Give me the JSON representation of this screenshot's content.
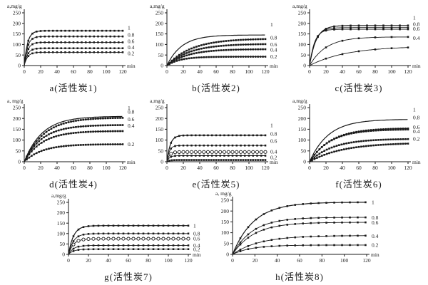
{
  "figure": {
    "description": "Eight adsorption-kinetics line charts for activated carbons 1-8",
    "model_note": "y(t) = plateau × (1 − exp(−t / tau_min)), t in minutes, y in mg/g",
    "ink_color": "#1a1a1a",
    "background_color": "#ffffff"
  },
  "chart_data": [
    {
      "id": "a",
      "type": "line",
      "caption": "a(活性炭1)",
      "ylabel": "a,mg/g",
      "xlabel": "min",
      "y_unit": "mg/g",
      "x_unit": "min",
      "ylim": [
        0,
        250
      ],
      "xlim": [
        0,
        120
      ],
      "yticks": [
        0,
        50,
        100,
        150,
        200,
        250
      ],
      "xticks": [
        0,
        20,
        40,
        60,
        80,
        100,
        120
      ],
      "series": [
        {
          "name": "1",
          "plateau": 165,
          "tau_min": 4,
          "marker": "filled-square",
          "marker_step_min": 5
        },
        {
          "name": "0.8",
          "plateau": 138,
          "tau_min": 4,
          "marker": "filled-square",
          "marker_step_min": 5
        },
        {
          "name": "0.6",
          "plateau": 110,
          "tau_min": 4,
          "marker": "filled-square",
          "marker_step_min": 5
        },
        {
          "name": "0.4",
          "plateau": 82,
          "tau_min": 4,
          "marker": "filled-square",
          "marker_step_min": 5
        },
        {
          "name": "0.2",
          "plateau": 63,
          "tau_min": 4,
          "marker": "filled-square",
          "marker_step_min": 5
        }
      ],
      "legend": [
        {
          "text": "1",
          "at_mg_g": 180
        },
        {
          "text": "0.8",
          "at_mg_g": 145
        },
        {
          "text": "0.6",
          "at_mg_g": 116
        },
        {
          "text": "0.4",
          "at_mg_g": 86
        },
        {
          "text": "0.2",
          "at_mg_g": 57
        }
      ]
    },
    {
      "id": "b",
      "type": "line",
      "caption": "b(活性炭2)",
      "ylabel": "a,mg/g",
      "xlabel": "min",
      "y_unit": "mg/g",
      "x_unit": "min",
      "ylim": [
        0,
        250
      ],
      "xlim": [
        0,
        120
      ],
      "yticks": [
        0,
        50,
        100,
        150,
        200,
        250
      ],
      "xticks": [
        0,
        20,
        40,
        60,
        80,
        100,
        120
      ],
      "series": [
        {
          "name": "1",
          "plateau": 145,
          "tau_min": 18,
          "marker": "none",
          "marker_step_min": 0
        },
        {
          "name": "0.8",
          "plateau": 128,
          "tau_min": 30,
          "marker": "filled-square",
          "marker_step_min": 3
        },
        {
          "name": "0.6",
          "plateau": 103,
          "tau_min": 28,
          "marker": "filled-square",
          "marker_step_min": 3
        },
        {
          "name": "0.4",
          "plateau": 78,
          "tau_min": 25,
          "marker": "filled-square",
          "marker_step_min": 3
        },
        {
          "name": "0.2",
          "plateau": 42,
          "tau_min": 16,
          "marker": "filled-square",
          "marker_step_min": 3
        }
      ],
      "legend": [
        {
          "text": "1",
          "at_mg_g": 194
        },
        {
          "text": "0.8",
          "at_mg_g": 132
        },
        {
          "text": "0.6",
          "at_mg_g": 100
        },
        {
          "text": "0.4",
          "at_mg_g": 74
        },
        {
          "text": "0.2",
          "at_mg_g": 42
        }
      ]
    },
    {
      "id": "c",
      "type": "line",
      "caption": "c(活性炭3)",
      "ylabel": "a,mg/g",
      "xlabel": "min",
      "y_unit": "mg/g",
      "x_unit": "min",
      "ylim": [
        0,
        250
      ],
      "xlim": [
        0,
        120
      ],
      "yticks": [
        0,
        50,
        100,
        150,
        200,
        250
      ],
      "xticks": [
        0,
        20,
        40,
        60,
        80,
        100,
        120
      ],
      "series": [
        {
          "name": "1",
          "plateau": 190,
          "tau_min": 8,
          "marker": "filled-square",
          "marker_step_min": 10
        },
        {
          "name": "0.8",
          "plateau": 180,
          "tau_min": 7,
          "marker": "filled-square",
          "marker_step_min": 10
        },
        {
          "name": "0.6",
          "plateau": 172,
          "tau_min": 6,
          "marker": "filled-square",
          "marker_step_min": 10
        },
        {
          "name": "0.4",
          "plateau": 136,
          "tau_min": 20,
          "marker": "filled-square",
          "marker_step_min": 20
        },
        {
          "name": "0.2",
          "plateau": 92,
          "tau_min": 45,
          "marker": "filled-square",
          "marker_step_min": 20
        }
      ],
      "legend": [
        {
          "text": "1",
          "at_mg_g": 227
        },
        {
          "text": "0.8",
          "at_mg_g": 196
        },
        {
          "text": "0.6",
          "at_mg_g": 174
        },
        {
          "text": "0.4",
          "at_mg_g": 130
        }
      ]
    },
    {
      "id": "d",
      "type": "line",
      "caption": "d(活性炭4)",
      "ylabel": "a, mg/g",
      "xlabel": "min",
      "y_unit": "mg/g",
      "x_unit": "min",
      "ylim": [
        0,
        250
      ],
      "xlim": [
        0,
        120
      ],
      "yticks": [
        0,
        50,
        100,
        150,
        200,
        250
      ],
      "xticks": [
        0,
        20,
        40,
        60,
        80,
        100,
        120
      ],
      "series": [
        {
          "name": "1",
          "plateau": 210,
          "tau_min": 22,
          "marker": "none",
          "marker_step_min": 0
        },
        {
          "name": "0.8",
          "plateau": 204,
          "tau_min": 24,
          "marker": "filled-square",
          "marker_step_min": 3
        },
        {
          "name": "0.6",
          "plateau": 170,
          "tau_min": 22,
          "marker": "filled-square",
          "marker_step_min": 3
        },
        {
          "name": "0.4",
          "plateau": 142,
          "tau_min": 22,
          "marker": "filled-square",
          "marker_step_min": 3
        },
        {
          "name": "0.2",
          "plateau": 81,
          "tau_min": 22,
          "marker": "filled-square",
          "marker_step_min": 3
        }
      ],
      "legend": [
        {
          "text": "1",
          "at_mg_g": 248
        },
        {
          "text": "0.8",
          "at_mg_g": 230
        },
        {
          "text": "0.6",
          "at_mg_g": 196
        },
        {
          "text": "0.4",
          "at_mg_g": 167
        },
        {
          "text": "0.2",
          "at_mg_g": 81
        }
      ]
    },
    {
      "id": "e",
      "type": "line",
      "caption": "e(活性炭5)",
      "ylabel": "a,mg/g",
      "xlabel": "min",
      "y_unit": "mg/g",
      "x_unit": "min",
      "ylim": [
        0,
        250
      ],
      "xlim": [
        0,
        120
      ],
      "yticks": [
        0,
        50,
        100,
        150,
        200,
        250
      ],
      "xticks": [
        0,
        20,
        40,
        60,
        80,
        100,
        120
      ],
      "series": [
        {
          "name": "1",
          "plateau": 122,
          "tau_min": 4,
          "marker": "filled-square",
          "marker_step_min": 5
        },
        {
          "name": "0.8",
          "plateau": 75,
          "tau_min": 3,
          "marker": "filled-square",
          "marker_step_min": 5
        },
        {
          "name": "0.6",
          "plateau": 45,
          "tau_min": 3,
          "marker": "open-circle",
          "marker_step_min": 5
        },
        {
          "name": "0.4",
          "plateau": 28,
          "tau_min": 3,
          "marker": "filled-square",
          "marker_step_min": 5
        },
        {
          "name": "0.2",
          "plateau": 8,
          "tau_min": 3,
          "marker": "filled-square",
          "marker_step_min": 3
        }
      ],
      "legend": [
        {
          "text": "1",
          "at_mg_g": 168
        },
        {
          "text": "0.8",
          "at_mg_g": 128
        },
        {
          "text": "0.6",
          "at_mg_g": 95
        },
        {
          "text": "0.4",
          "at_mg_g": 47
        },
        {
          "text": "0.2",
          "at_mg_g": 20
        }
      ]
    },
    {
      "id": "f",
      "type": "line",
      "caption": "f(活性炭6)",
      "ylabel": "a,mg/g",
      "xlabel": "min",
      "y_unit": "mg/g",
      "x_unit": "min",
      "ylim": [
        0,
        250
      ],
      "xlim": [
        0,
        120
      ],
      "yticks": [
        0,
        50,
        100,
        150,
        200,
        250
      ],
      "xticks": [
        0,
        20,
        40,
        60,
        80,
        100,
        120
      ],
      "series": [
        {
          "name": "1",
          "plateau": 196,
          "tau_min": 23,
          "marker": "none",
          "marker_step_min": 0
        },
        {
          "name": "0.8",
          "plateau": 155,
          "tau_min": 26,
          "marker": "filled-square",
          "marker_step_min": 3
        },
        {
          "name": "0.6",
          "plateau": 150,
          "tau_min": 25,
          "marker": "filled-square",
          "marker_step_min": 3
        },
        {
          "name": "0.4",
          "plateau": 106,
          "tau_min": 28,
          "marker": "filled-square",
          "marker_step_min": 3
        },
        {
          "name": "0.2",
          "plateau": 88,
          "tau_min": 40,
          "marker": "filled-square",
          "marker_step_min": 3
        }
      ],
      "legend": [
        {
          "text": "1",
          "at_mg_g": 240
        },
        {
          "text": "0.8",
          "at_mg_g": 205
        },
        {
          "text": "0.6",
          "at_mg_g": 160
        },
        {
          "text": "0.4",
          "at_mg_g": 140
        },
        {
          "text": "0.2",
          "at_mg_g": 106
        }
      ]
    },
    {
      "id": "g",
      "type": "line",
      "caption": "g(活性炭7)",
      "ylabel": "a,mg/g",
      "xlabel": "min",
      "y_unit": "mg/g",
      "x_unit": "min",
      "ylim": [
        0,
        250
      ],
      "xlim": [
        0,
        120
      ],
      "yticks": [
        0,
        50,
        100,
        150,
        200,
        250
      ],
      "xticks": [
        0,
        20,
        40,
        60,
        80,
        100,
        120
      ],
      "series": [
        {
          "name": "1",
          "plateau": 138,
          "tau_min": 5,
          "marker": "filled-square",
          "marker_step_min": 5
        },
        {
          "name": "0.8",
          "plateau": 100,
          "tau_min": 5,
          "marker": "filled-square",
          "marker_step_min": 5
        },
        {
          "name": "0.6",
          "plateau": 75,
          "tau_min": 5,
          "marker": "open-circle",
          "marker_step_min": 5
        },
        {
          "name": "0.4",
          "plateau": 43,
          "tau_min": 5,
          "marker": "filled-square",
          "marker_step_min": 5
        },
        {
          "name": "0.2",
          "plateau": 25,
          "tau_min": 5,
          "marker": "filled-square",
          "marker_step_min": 5
        }
      ],
      "legend": [
        {
          "text": "1",
          "at_mg_g": 138
        },
        {
          "text": "0.8",
          "at_mg_g": 100
        },
        {
          "text": "0.6",
          "at_mg_g": 75
        },
        {
          "text": "0.4",
          "at_mg_g": 43
        },
        {
          "text": "0.2",
          "at_mg_g": 25
        }
      ]
    },
    {
      "id": "h",
      "type": "line",
      "caption": "h(活性炭8)",
      "ylabel": "a, mg/g",
      "xlabel": "min",
      "y_unit": "mg/g",
      "x_unit": "min",
      "ylim": [
        0,
        250
      ],
      "xlim": [
        0,
        120
      ],
      "yticks": [
        0,
        50,
        100,
        150,
        200,
        250
      ],
      "xticks": [
        0,
        20,
        40,
        60,
        80,
        100,
        120
      ],
      "series": [
        {
          "name": "1",
          "plateau": 241,
          "tau_min": 19,
          "marker": "filled-square",
          "marker_step_min": 7
        },
        {
          "name": "0.8",
          "plateau": 171,
          "tau_min": 18,
          "marker": "filled-square",
          "marker_step_min": 7
        },
        {
          "name": "0.6",
          "plateau": 148,
          "tau_min": 19,
          "marker": "filled-square",
          "marker_step_min": 7
        },
        {
          "name": "0.4",
          "plateau": 87,
          "tau_min": 24,
          "marker": "filled-square",
          "marker_step_min": 7
        },
        {
          "name": "0.2",
          "plateau": 43,
          "tau_min": 17,
          "marker": "filled-square",
          "marker_step_min": 7
        }
      ],
      "legend": [
        {
          "text": "1",
          "at_mg_g": 240
        },
        {
          "text": "0.8",
          "at_mg_g": 170
        },
        {
          "text": "0.6",
          "at_mg_g": 147
        },
        {
          "text": "0.4",
          "at_mg_g": 85
        },
        {
          "text": "0.2",
          "at_mg_g": 43
        }
      ]
    }
  ]
}
